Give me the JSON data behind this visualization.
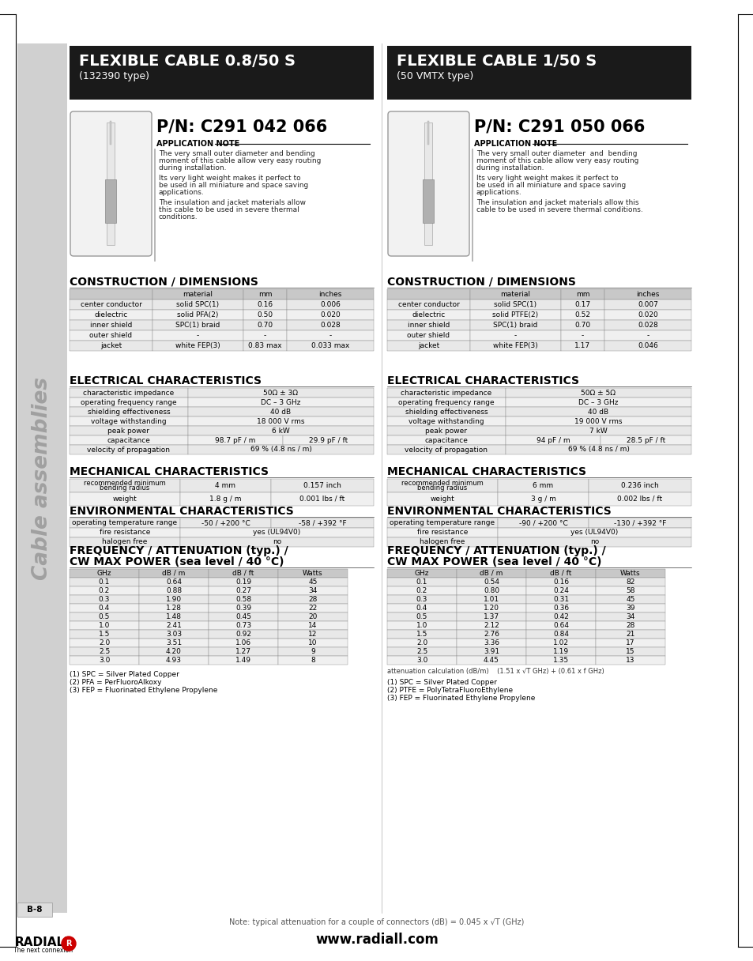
{
  "page_bg": "#ffffff",
  "banner_bg": "#c8c8c8",
  "banner_text": "Cable assemblies",
  "col1_header_bg": "#1a1a1a",
  "col1_header_title": "FLEXIBLE CABLE 0.8/50 S",
  "col1_header_subtitle": "(132390 type)",
  "col2_header_bg": "#1a1a1a",
  "col2_header_title": "FLEXIBLE CABLE 1/50 S",
  "col2_header_subtitle": "(50 VMTX type)",
  "col1_pn": "P/N: C291 042 066",
  "col2_pn": "P/N: C291 050 066",
  "app_note_label": "APPLICATION NOTE",
  "col1_app_note_lines": [
    "The very small outer diameter and bending",
    "moment of this cable allow very easy routing",
    "during installation.",
    "",
    "Its very light weight makes it perfect to",
    "be used in all miniature and space saving",
    "applications.",
    "",
    "The insulation and jacket materials allow",
    "this cable to be used in severe thermal",
    "conditions."
  ],
  "col2_app_note_lines": [
    "The very small outer diameter  and  bending",
    "moment of this cable allow very easy routing",
    "during installation.",
    "",
    "Its very light weight makes it perfect to",
    "be used in all miniature and space saving",
    "applications.",
    "",
    "The insulation and jacket materials allow this",
    "cable to be used in severe thermal conditions."
  ],
  "construction_title": "CONSTRUCTION / DIMENSIONS",
  "construction_headers": [
    "",
    "material",
    "mm",
    "inches"
  ],
  "col1_construction_rows": [
    [
      "center conductor",
      "solid SPC(1)",
      "0.16",
      "0.006"
    ],
    [
      "dielectric",
      "solid PFA(2)",
      "0.50",
      "0.020"
    ],
    [
      "inner shield",
      "SPC(1) braid",
      "0.70",
      "0.028"
    ],
    [
      "outer shield",
      "-",
      "-",
      "-"
    ],
    [
      "jacket",
      "white FEP(3)",
      "0.83 max",
      "0.033 max"
    ]
  ],
  "col2_construction_rows": [
    [
      "center conductor",
      "solid SPC(1)",
      "0.17",
      "0.007"
    ],
    [
      "dielectric",
      "solid PTFE(2)",
      "0.52",
      "0.020"
    ],
    [
      "inner shield",
      "SPC(1) braid",
      "0.70",
      "0.028"
    ],
    [
      "outer shield",
      "-",
      "-",
      "-"
    ],
    [
      "jacket",
      "white FEP(3)",
      "1.17",
      "0.046"
    ]
  ],
  "electrical_title": "ELECTRICAL CHARACTERISTICS",
  "col1_electrical_rows": [
    [
      "characteristic impedance",
      "50Ω ± 3Ω",
      null
    ],
    [
      "operating frequency range",
      "DC – 3 GHz",
      null
    ],
    [
      "shielding effectiveness",
      "40 dB",
      null
    ],
    [
      "voltage withstanding",
      "18 000 V rms",
      null
    ],
    [
      "peak power",
      "6 kW",
      null
    ],
    [
      "capacitance",
      "98.7 pF / m",
      "29.9 pF / ft"
    ],
    [
      "velocity of propagation",
      "69 % (4.8 ns / m)",
      null
    ]
  ],
  "col2_electrical_rows": [
    [
      "characteristic impedance",
      "50Ω ± 5Ω",
      null
    ],
    [
      "operating frequency range",
      "DC – 3 GHz",
      null
    ],
    [
      "shielding effectiveness",
      "40 dB",
      null
    ],
    [
      "voltage withstanding",
      "19 000 V rms",
      null
    ],
    [
      "peak power",
      "7 kW",
      null
    ],
    [
      "capacitance",
      "94 pF / m",
      "28.5 pF / ft"
    ],
    [
      "velocity of propagation",
      "69 % (4.8 ns / m)",
      null
    ]
  ],
  "mechanical_title": "MECHANICAL CHARACTERISTICS",
  "col1_mechanical_rows": [
    [
      "recommended minimum\nbending radius",
      "4 mm",
      "0.157 inch"
    ],
    [
      "weight",
      "1.8 g / m",
      "0.001 lbs / ft"
    ]
  ],
  "col2_mechanical_rows": [
    [
      "recommended minimum\nbending radius",
      "6 mm",
      "0.236 inch"
    ],
    [
      "weight",
      "3 g / m",
      "0.002 lbs / ft"
    ]
  ],
  "environmental_title": "ENVIRONMENTAL CHARACTERISTICS",
  "col1_environmental_rows": [
    [
      "operating temperature range",
      "-50 / +200 °C",
      "-58 / +392 °F"
    ],
    [
      "fire resistance",
      "yes (UL94V0)",
      null
    ],
    [
      "halogen free",
      "no",
      null
    ]
  ],
  "col2_environmental_rows": [
    [
      "operating temperature range",
      "-90 / +200 °C",
      "-130 / +392 °F"
    ],
    [
      "fire resistance",
      "yes (UL94V0)",
      null
    ],
    [
      "halogen free",
      "no",
      null
    ]
  ],
  "frequency_title_line1": "FREQUENCY / ATTENUATION (typ.) /",
  "frequency_title_line2": "CW MAX POWER (sea level / 40 °C)",
  "freq_headers": [
    "GHz",
    "dB / m",
    "dB / ft",
    "Watts"
  ],
  "col1_freq_rows": [
    [
      "0.1",
      "0.64",
      "0.19",
      "45"
    ],
    [
      "0.2",
      "0.88",
      "0.27",
      "34"
    ],
    [
      "0.3",
      "1.90",
      "0.58",
      "28"
    ],
    [
      "0.4",
      "1.28",
      "0.39",
      "22"
    ],
    [
      "0.5",
      "1.48",
      "0.45",
      "20"
    ],
    [
      "1.0",
      "2.41",
      "0.73",
      "14"
    ],
    [
      "1.5",
      "3.03",
      "0.92",
      "12"
    ],
    [
      "2.0",
      "3.51",
      "1.06",
      "10"
    ],
    [
      "2.5",
      "4.20",
      "1.27",
      "9"
    ],
    [
      "3.0",
      "4.93",
      "1.49",
      "8"
    ]
  ],
  "col2_freq_rows": [
    [
      "0.1",
      "0.54",
      "0.16",
      "82"
    ],
    [
      "0.2",
      "0.80",
      "0.24",
      "58"
    ],
    [
      "0.3",
      "1.01",
      "0.31",
      "45"
    ],
    [
      "0.4",
      "1.20",
      "0.36",
      "39"
    ],
    [
      "0.5",
      "1.37",
      "0.42",
      "34"
    ],
    [
      "1.0",
      "2.12",
      "0.64",
      "28"
    ],
    [
      "1.5",
      "2.76",
      "0.84",
      "21"
    ],
    [
      "2.0",
      "3.36",
      "1.02",
      "17"
    ],
    [
      "2.5",
      "3.91",
      "1.19",
      "15"
    ],
    [
      "3.0",
      "4.45",
      "1.35",
      "13"
    ]
  ],
  "col2_freq_attn_note": "attenuation calculation (dB/m)    (1.51 x √T GHz) + (0.61 x f GHz)",
  "col1_footnotes": [
    "(1) SPC = Silver Plated Copper",
    "(2) PFA = PerFluoroAlkoxy",
    "(3) FEP = Fluorinated Ethylene Propylene"
  ],
  "col2_footnotes": [
    "(1) SPC = Silver Plated Copper",
    "(2) PTFE = PolyTetraFluoroEthylene",
    "(3) FEP = Fluorinated Ethylene Propylene"
  ],
  "bottom_note": "Note: typical attenuation for a couple of connectors (dB) = 0.045 x √T (GHz)",
  "page_label": "B-8",
  "website": "www.radiall.com",
  "radiall_logo": "RADIALL",
  "radiall_sub": "The next connexion"
}
